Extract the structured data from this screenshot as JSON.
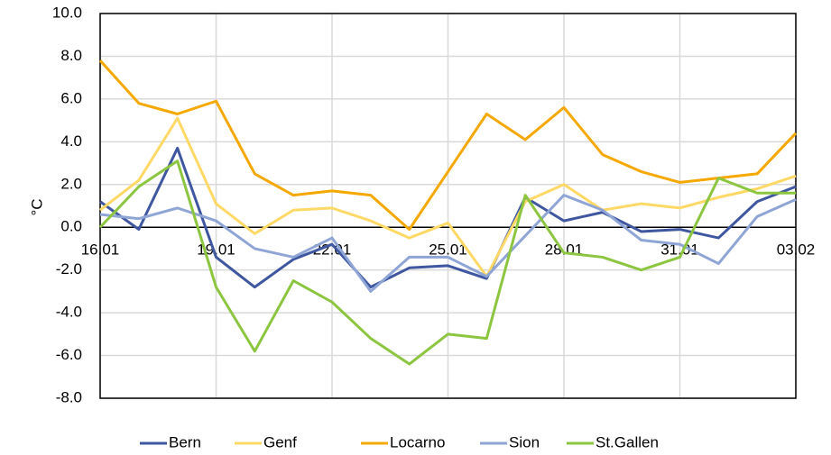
{
  "chart_data": {
    "type": "line",
    "y_label": "°C",
    "categories": [
      "16.01",
      null,
      null,
      "19.01",
      null,
      null,
      "22.01",
      null,
      null,
      "25.01",
      null,
      null,
      "28.01",
      null,
      null,
      "31.01",
      null,
      null,
      "03.02"
    ],
    "series": [
      {
        "name": "Bern",
        "color": "#3f57a0",
        "values": [
          1.2,
          -0.1,
          3.7,
          -1.4,
          -2.8,
          -1.5,
          -0.8,
          -2.8,
          -1.9,
          -1.8,
          -2.4,
          1.4,
          0.3,
          0.7,
          -0.2,
          -0.1,
          -0.5,
          1.2,
          1.9
        ]
      },
      {
        "name": "Genf",
        "color": "#ffd966",
        "values": [
          0.8,
          2.2,
          5.1,
          1.1,
          -0.3,
          0.8,
          0.9,
          0.3,
          -0.5,
          0.2,
          -2.3,
          1.2,
          2.0,
          0.8,
          1.1,
          0.9,
          1.4,
          1.8,
          2.4
        ]
      },
      {
        "name": "Locarno",
        "color": "#f5a800",
        "values": [
          7.8,
          5.8,
          5.3,
          5.9,
          2.5,
          1.5,
          1.7,
          1.5,
          -0.1,
          2.6,
          5.3,
          4.1,
          5.6,
          3.4,
          2.6,
          2.1,
          2.3,
          2.5,
          4.4
        ]
      },
      {
        "name": "Sion",
        "color": "#8fa5d6",
        "values": [
          0.6,
          0.4,
          0.9,
          0.3,
          -1.0,
          -1.4,
          -0.5,
          -3.0,
          -1.4,
          -1.4,
          -2.3,
          -0.4,
          1.5,
          0.8,
          -0.6,
          -0.8,
          -1.7,
          0.5,
          1.3
        ]
      },
      {
        "name": "St.Gallen",
        "color": "#8cc540",
        "values": [
          0.0,
          1.9,
          3.1,
          -2.8,
          -5.8,
          -2.5,
          -3.5,
          -5.2,
          -6.4,
          -5.0,
          -5.2,
          1.5,
          -1.2,
          -1.4,
          -2.0,
          -1.4,
          2.3,
          1.6,
          1.6
        ]
      }
    ],
    "ylim": [
      -8,
      10
    ],
    "yticks": [
      {
        "value": -8,
        "label": "-8.0"
      },
      {
        "value": -6,
        "label": "-6.0"
      },
      {
        "value": -4,
        "label": "-4.0"
      },
      {
        "value": -2,
        "label": "-2.0"
      },
      {
        "value": 0,
        "label": "0.0"
      },
      {
        "value": 2,
        "label": "2.0"
      },
      {
        "value": 4,
        "label": "4.0"
      },
      {
        "value": 6,
        "label": "6.0"
      },
      {
        "value": 8,
        "label": "8.0"
      },
      {
        "value": 10,
        "label": "10.0"
      }
    ],
    "grid": true,
    "legend": "bottom"
  }
}
